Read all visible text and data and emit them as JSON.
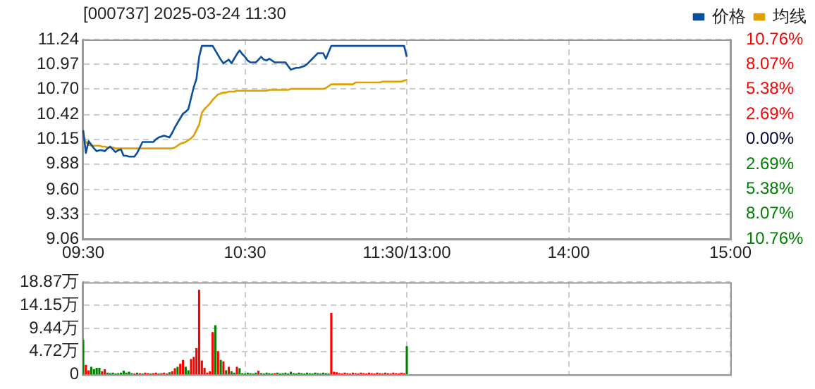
{
  "chart_data": [
    {
      "type": "line",
      "title": "[000737] 2025-03-24 11:30",
      "legend": "top right",
      "grid": true,
      "marker": "none",
      "line_style": "solid",
      "categories": [
        "09:30",
        null,
        null,
        null,
        null,
        null,
        null,
        null,
        null,
        null,
        null,
        null,
        null,
        null,
        null,
        null,
        null,
        null,
        null,
        null,
        null,
        null,
        null,
        null,
        null,
        null,
        null,
        null,
        null,
        null,
        null,
        null,
        null,
        null,
        null,
        null,
        null,
        null,
        null,
        null,
        null,
        null,
        null,
        null,
        null,
        null,
        null,
        null,
        null,
        null,
        null,
        null,
        null,
        null,
        null,
        null,
        null,
        null,
        null,
        null,
        "10:30",
        null,
        null,
        null,
        null,
        null,
        null,
        null,
        null,
        null,
        null,
        null,
        null,
        null,
        null,
        null,
        null,
        null,
        null,
        null,
        null,
        null,
        null,
        null,
        null,
        null,
        null,
        null,
        null,
        null,
        null,
        null,
        null,
        null,
        null,
        null,
        null,
        null,
        null,
        null,
        null,
        null,
        null,
        null,
        null,
        null,
        null,
        null,
        null,
        null,
        null,
        null,
        null,
        null,
        null,
        null,
        null,
        null,
        null,
        null,
        "11:30/13:00",
        null,
        null,
        null,
        null,
        null,
        null,
        null,
        null,
        null,
        null,
        null,
        null,
        null,
        null,
        null,
        null,
        null,
        null,
        null,
        null,
        null,
        null,
        null,
        null,
        null,
        null,
        null,
        null,
        null,
        null,
        null,
        null,
        null,
        null,
        null,
        null,
        null,
        null,
        null,
        null,
        null,
        null,
        null,
        null,
        null,
        null,
        null,
        null,
        null,
        null,
        null,
        null,
        null,
        null,
        null,
        null,
        null,
        null,
        null,
        "14:00",
        null,
        null,
        null,
        null,
        null,
        null,
        null,
        null,
        null,
        null,
        null,
        null,
        null,
        null,
        null,
        null,
        null,
        null,
        null,
        null,
        null,
        null,
        null,
        null,
        null,
        null,
        null,
        null,
        null,
        null,
        null,
        null,
        null,
        null,
        null,
        null,
        null,
        null,
        null,
        null,
        null,
        null,
        null,
        null,
        null,
        null,
        null,
        null,
        null,
        null,
        null,
        null,
        null,
        null,
        null,
        null,
        null,
        null,
        null,
        "15:00"
      ],
      "ylim": [
        9.06,
        11.24
      ],
      "yticks": [
        9.06,
        9.33,
        {
          "value": 9.6,
          "label": "9.60"
        },
        9.88,
        10.15,
        10.42,
        {
          "value": 10.7,
          "label": "10.70"
        },
        10.97,
        11.24
      ],
      "y2lim": [
        -10.76,
        10.76
      ],
      "y2ticks": [
        {
          "value": -10.76,
          "label": "10.76%"
        },
        {
          "value": -8.07,
          "label": "8.07%"
        },
        {
          "value": -5.38,
          "label": "5.38%"
        },
        {
          "value": -2.69,
          "label": "2.69%"
        },
        {
          "value": 0,
          "label": "0.00%"
        },
        {
          "value": 2.69,
          "label": "2.69%"
        },
        {
          "value": 5.38,
          "label": "5.38%"
        },
        {
          "value": 8.07,
          "label": "8.07%"
        },
        {
          "value": 10.76,
          "label": "10.76%"
        }
      ],
      "series": [
        {
          "name": "价格",
          "color": "#0a4f9e",
          "values": [
            10.25,
            10.0,
            10.13,
            10.09,
            10.05,
            10.02,
            10.03,
            10.03,
            10.02,
            10.05,
            10.07,
            10.04,
            10.01,
            10.03,
            10.04,
            9.97,
            9.97,
            9.96,
            9.96,
            9.96,
            10.0,
            10.06,
            10.12,
            10.12,
            10.12,
            10.12,
            10.12,
            10.15,
            10.17,
            10.18,
            10.19,
            10.18,
            10.17,
            10.22,
            10.28,
            10.33,
            10.38,
            10.43,
            10.45,
            10.48,
            10.6,
            10.72,
            10.81,
            11.05,
            11.17,
            11.17,
            11.17,
            11.17,
            11.17,
            11.12,
            11.07,
            11.02,
            10.98,
            11.0,
            11.02,
            10.98,
            11.03,
            11.08,
            11.12,
            11.08,
            11.05,
            11.01,
            10.99,
            10.99,
            10.99,
            11.02,
            11.05,
            11.02,
            11.01,
            11.03,
            11.01,
            10.99,
            10.99,
            10.99,
            10.99,
            10.99,
            10.95,
            10.91,
            10.92,
            10.93,
            10.93,
            10.94,
            10.95,
            10.97,
            11.0,
            11.03,
            11.06,
            11.09,
            11.09,
            11.09,
            11.03,
            11.1,
            11.17,
            11.17,
            11.17,
            11.17,
            11.17,
            11.17,
            11.17,
            11.17,
            11.17,
            11.17,
            11.17,
            11.17,
            11.17,
            11.17,
            11.17,
            11.17,
            11.17,
            11.17,
            11.17,
            11.17,
            11.17,
            11.17,
            11.17,
            11.17,
            11.17,
            11.17,
            11.17,
            11.17,
            11.05,
            null,
            null,
            null,
            null,
            null,
            null,
            null,
            null,
            null,
            null,
            null,
            null,
            null,
            null,
            null,
            null,
            null,
            null,
            null,
            null,
            null,
            null,
            null,
            null,
            null,
            null,
            null,
            null,
            null,
            null,
            null,
            null,
            null,
            null,
            null,
            null,
            null,
            null,
            null,
            null,
            null,
            null,
            null,
            null,
            null,
            null,
            null,
            null,
            null,
            null,
            null,
            null,
            null,
            null,
            null,
            null,
            null,
            null,
            null,
            null,
            null,
            null,
            null,
            null,
            null,
            null,
            null,
            null,
            null,
            null,
            null,
            null,
            null,
            null,
            null,
            null,
            null,
            null,
            null,
            null,
            null,
            null,
            null,
            null,
            null,
            null,
            null,
            null,
            null,
            null,
            null,
            null,
            null,
            null,
            null,
            null,
            null,
            null,
            null,
            null,
            null,
            null,
            null,
            null,
            null,
            null,
            null,
            null,
            null,
            null,
            null,
            null,
            null,
            null,
            null,
            null,
            null,
            null,
            null,
            null
          ]
        },
        {
          "name": "均线",
          "color": "#e0a100",
          "values": [
            10.19,
            10.12,
            10.09,
            10.08,
            10.08,
            10.08,
            10.08,
            10.07,
            10.07,
            10.06,
            10.06,
            10.06,
            10.05,
            10.05,
            10.05,
            10.05,
            10.05,
            10.05,
            10.05,
            10.05,
            10.05,
            10.05,
            10.05,
            10.05,
            10.05,
            10.05,
            10.05,
            10.05,
            10.05,
            10.05,
            10.05,
            10.05,
            10.05,
            10.05,
            10.06,
            10.08,
            10.1,
            10.11,
            10.12,
            10.14,
            10.16,
            10.19,
            10.25,
            10.31,
            10.44,
            10.48,
            10.51,
            10.54,
            10.58,
            10.61,
            10.64,
            10.65,
            10.66,
            10.66,
            10.67,
            10.67,
            10.67,
            10.68,
            10.68,
            10.68,
            10.68,
            10.68,
            10.68,
            10.68,
            10.68,
            10.68,
            10.68,
            10.68,
            10.68,
            10.69,
            10.69,
            10.69,
            10.69,
            10.69,
            10.69,
            10.69,
            10.69,
            10.7,
            10.7,
            10.7,
            10.7,
            10.7,
            10.7,
            10.7,
            10.7,
            10.7,
            10.7,
            10.7,
            10.7,
            10.7,
            10.71,
            10.73,
            10.75,
            10.75,
            10.75,
            10.75,
            10.75,
            10.75,
            10.75,
            10.75,
            10.75,
            10.77,
            10.77,
            10.77,
            10.77,
            10.77,
            10.77,
            10.77,
            10.77,
            10.77,
            10.77,
            10.78,
            10.78,
            10.78,
            10.78,
            10.78,
            10.78,
            10.78,
            10.78,
            10.79,
            10.8,
            null,
            null,
            null,
            null,
            null,
            null,
            null,
            null,
            null,
            null,
            null,
            null,
            null,
            null,
            null,
            null,
            null,
            null,
            null,
            null,
            null,
            null,
            null,
            null,
            null,
            null,
            null,
            null,
            null,
            null,
            null,
            null,
            null,
            null,
            null,
            null,
            null,
            null,
            null,
            null,
            null,
            null,
            null,
            null,
            null,
            null,
            null,
            null,
            null,
            null,
            null,
            null,
            null,
            null,
            null,
            null,
            null,
            null,
            null,
            null,
            null,
            null,
            null,
            null,
            null,
            null,
            null,
            null,
            null,
            null,
            null,
            null,
            null,
            null,
            null,
            null,
            null,
            null,
            null,
            null,
            null,
            null,
            null,
            null,
            null,
            null,
            null,
            null,
            null,
            null,
            null,
            null,
            null,
            null,
            null,
            null,
            null,
            null,
            null,
            null,
            null,
            null,
            null,
            null,
            null,
            null,
            null,
            null,
            null,
            null,
            null,
            null,
            null,
            null,
            null,
            null,
            null,
            null,
            null,
            null
          ]
        }
      ]
    },
    {
      "type": "bar",
      "grid": true,
      "tick_labels": "y",
      "categories": [
        null,
        null,
        null,
        null,
        null,
        null,
        null,
        null,
        null,
        null,
        null,
        null,
        null,
        null,
        null,
        null,
        null,
        null,
        null,
        null,
        null,
        null,
        null,
        null,
        null,
        null,
        null,
        null,
        null,
        null,
        null,
        null,
        null,
        null,
        null,
        null,
        null,
        null,
        null,
        null,
        null,
        null,
        null,
        null,
        null,
        null,
        null,
        null,
        null,
        null,
        null,
        null,
        null,
        null,
        null,
        null,
        null,
        null,
        null,
        null,
        null,
        null,
        null,
        null,
        null,
        null,
        null,
        null,
        null,
        null,
        null,
        null,
        null,
        null,
        null,
        null,
        null,
        null,
        null,
        null,
        null,
        null,
        null,
        null,
        null,
        null,
        null,
        null,
        null,
        null,
        null,
        null,
        null,
        null,
        null,
        null,
        null,
        null,
        null,
        null,
        null,
        null,
        null,
        null,
        null,
        null,
        null,
        null,
        null,
        null,
        null,
        null,
        null,
        null,
        null,
        null,
        null,
        null,
        null,
        null,
        null,
        null,
        null,
        null,
        null,
        null,
        null,
        null,
        null,
        null,
        null,
        null,
        null,
        null,
        null,
        null,
        null,
        null,
        null,
        null,
        null,
        null,
        null,
        null,
        null,
        null,
        null,
        null,
        null,
        null,
        null,
        null,
        null,
        null,
        null,
        null,
        null,
        null,
        null,
        null,
        null,
        null,
        null,
        null,
        null,
        null,
        null,
        null,
        null,
        null,
        null,
        null,
        null,
        null,
        null,
        null,
        null,
        null,
        null,
        null,
        null,
        null,
        null,
        null,
        null,
        null,
        null,
        null,
        null,
        null,
        null,
        null,
        null,
        null,
        null,
        null,
        null,
        null,
        null,
        null,
        null,
        null,
        null,
        null,
        null,
        null,
        null,
        null,
        null,
        null,
        null,
        null,
        null,
        null,
        null,
        null,
        null,
        null,
        null,
        null,
        null,
        null,
        null,
        null,
        null,
        null,
        null,
        null,
        null,
        null,
        null,
        null,
        null,
        null,
        null,
        null,
        null,
        null,
        null,
        null,
        null
      ],
      "ylim": [
        0,
        18.87
      ],
      "yticks": [
        0,
        {
          "value": 4.72,
          "label": "4.72万"
        },
        {
          "value": 9.44,
          "label": "9.44万"
        },
        {
          "value": 14.15,
          "label": "14.15万"
        },
        {
          "value": 18.87,
          "label": "18.87万"
        }
      ],
      "values": [
        7.0,
        1.9,
        0.8,
        1.5,
        1.0,
        1.3,
        1.3,
        0.6,
        1.0,
        0.3,
        0.2,
        0.3,
        0.1,
        0.2,
        0.3,
        0.7,
        0.3,
        0.5,
        0.2,
        0.1,
        0.3,
        0.2,
        0.1,
        0.3,
        0.2,
        0.1,
        0.2,
        0.3,
        0.1,
        0.2,
        0.3,
        0.1,
        0.4,
        0.6,
        1.2,
        1.5,
        2.1,
        2.9,
        1.5,
        0.8,
        3.1,
        3.5,
        5.3,
        17.2,
        2.8,
        1.3,
        0.3,
        0.6,
        8.6,
        10.0,
        4.7,
        2.9,
        2.6,
        0.8,
        1.5,
        0.6,
        0.3,
        1.5,
        1.2,
        0.2,
        0.1,
        0.3,
        0.2,
        0.1,
        0.3,
        0.7,
        0.2,
        0.1,
        0.3,
        0.2,
        0.1,
        0.2,
        0.3,
        0.1,
        0.2,
        0.3,
        0.1,
        0.5,
        0.2,
        0.1,
        0.3,
        0.2,
        0.1,
        0.3,
        0.2,
        0.1,
        0.3,
        0.2,
        0.1,
        0.3,
        0.2,
        0.1,
        12.5,
        0.5,
        0.4,
        0.2,
        0.1,
        0.3,
        0.2,
        0.1,
        0.3,
        0.2,
        0.1,
        0.3,
        0.2,
        0.1,
        0.3,
        0.2,
        0.1,
        0.3,
        0.2,
        0.1,
        0.3,
        0.2,
        0.1,
        0.3,
        0.2,
        0.1,
        0.3,
        0.2,
        5.7,
        null,
        null,
        null,
        null,
        null,
        null,
        null,
        null,
        null,
        null,
        null,
        null,
        null,
        null,
        null,
        null,
        null,
        null,
        null,
        null,
        null,
        null,
        null,
        null,
        null,
        null,
        null,
        null,
        null,
        null,
        null,
        null,
        null,
        null,
        null,
        null,
        null,
        null,
        null,
        null,
        null,
        null,
        null,
        null,
        null,
        null,
        null,
        null,
        null,
        null,
        null,
        null,
        null,
        null,
        null,
        null,
        null,
        null,
        null,
        null,
        null,
        null,
        null,
        null,
        null,
        null,
        null,
        null,
        null,
        null,
        null,
        null,
        null,
        null,
        null,
        null,
        null,
        null,
        null,
        null,
        null,
        null,
        null,
        null,
        null,
        null,
        null,
        null,
        null,
        null,
        null,
        null,
        null,
        null,
        null,
        null,
        null,
        null,
        null,
        null,
        null,
        null,
        null,
        null,
        null,
        null,
        null,
        null,
        null,
        null,
        null,
        null,
        null,
        null,
        null,
        null,
        null,
        null,
        null,
        null
      ],
      "colors": [
        "#008000",
        "#ff0000",
        "#ff0000",
        "#008000",
        "#008000",
        "#008000",
        "#008000",
        "#ff0000",
        "#ff0000",
        "#008000",
        "#008000",
        "#008000",
        "#008000",
        "#008000",
        "#008000",
        "#008000",
        "#008000",
        "#008000",
        "#008000",
        "#ff0000",
        "#008000",
        "#ff0000",
        "#008000",
        "#ff0000",
        "#ff0000",
        "#008000",
        "#ff0000",
        "#ff0000",
        "#008000",
        "#ff0000",
        "#ff0000",
        "#ff0000",
        "#008000",
        "#ff0000",
        "#ff0000",
        "#008000",
        "#ff0000",
        "#ff0000",
        "#008000",
        "#008000",
        "#ff0000",
        "#ff0000",
        "#ff0000",
        "#ff0000",
        "#ff0000",
        "#ff0000",
        "#ff0000",
        "#ff0000",
        "#ff0000",
        "#008000",
        "#ff0000",
        "#008000",
        "#ff0000",
        "#008000",
        "#ff0000",
        "#008000",
        "#008000",
        "#ff0000",
        "#008000",
        "#008000",
        "#008000",
        "#008000",
        "#008000",
        "#008000",
        "#008000",
        "#ff0000",
        "#008000",
        "#008000",
        "#008000",
        "#008000",
        "#008000",
        "#ff0000",
        "#008000",
        "#008000",
        "#008000",
        "#008000",
        "#008000",
        "#008000",
        "#008000",
        "#008000",
        "#008000",
        "#008000",
        "#008000",
        "#008000",
        "#008000",
        "#008000",
        "#008000",
        "#008000",
        "#008000",
        "#008000",
        "#008000",
        "#008000",
        "#ff0000",
        "#ff0000",
        "#ff0000",
        "#ff0000",
        "#ff0000",
        "#ff0000",
        "#ff0000",
        "#ff0000",
        "#ff0000",
        "#ff0000",
        "#ff0000",
        "#ff0000",
        "#ff0000",
        "#ff0000",
        "#ff0000",
        "#ff0000",
        "#ff0000",
        "#ff0000",
        "#ff0000",
        "#ff0000",
        "#ff0000",
        "#ff0000",
        "#ff0000",
        "#ff0000",
        "#ff0000",
        "#ff0000",
        "#ff0000",
        "#ff0000",
        "#008000",
        null,
        null,
        null,
        null,
        null,
        null,
        null,
        null,
        null,
        null,
        null,
        null,
        null,
        null,
        null,
        null,
        null,
        null,
        null,
        null,
        null,
        null,
        null,
        null,
        null,
        null,
        null,
        null,
        null,
        null,
        null,
        null,
        null,
        null,
        null,
        null,
        null,
        null,
        null,
        null,
        null,
        null,
        null,
        null,
        null,
        null,
        null,
        null,
        null,
        null,
        null,
        null,
        null,
        null,
        null,
        null,
        null,
        null,
        null,
        null,
        null,
        null,
        null,
        null,
        null,
        null,
        null,
        null,
        null,
        null,
        null,
        null,
        null,
        null,
        null,
        null,
        null,
        null,
        null,
        null,
        null,
        null,
        null,
        null,
        null,
        null,
        null,
        null,
        null,
        null,
        null,
        null,
        null,
        null,
        null,
        null,
        null,
        null,
        null,
        null,
        null,
        null,
        null,
        null,
        null,
        null,
        null,
        null,
        null,
        null,
        null,
        null,
        null,
        null,
        null,
        null,
        null,
        null,
        null,
        null
      ]
    }
  ]
}
